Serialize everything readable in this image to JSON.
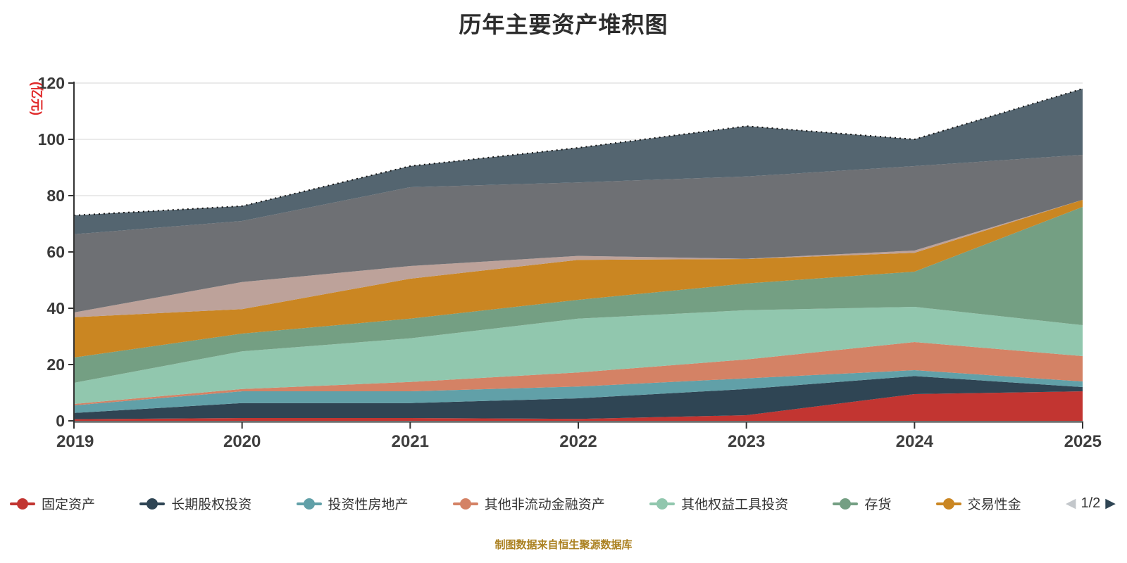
{
  "title": "历年主要资产堆积图",
  "footer": "制图数据来自恒生聚源数据库",
  "y_axis": {
    "name": "(亿元)",
    "name_color": "#e02b2b",
    "ticks": [
      0,
      20,
      40,
      60,
      80,
      100,
      120
    ]
  },
  "x_axis": {
    "labels": [
      "2019",
      "2020",
      "2021",
      "2022",
      "2023",
      "2024",
      "2025"
    ]
  },
  "legend": {
    "visible_items": [
      {
        "label": "固定资产",
        "color": "#c23531"
      },
      {
        "label": "长期股权投资",
        "color": "#2f4554"
      },
      {
        "label": "投资性房地产",
        "color": "#61a0a8"
      },
      {
        "label": "其他非流动金融资产",
        "color": "#d48265"
      },
      {
        "label": "其他权益工具投资",
        "color": "#91c7ae"
      },
      {
        "label": "存货",
        "color": "#749f83"
      },
      {
        "label": "交易性金",
        "color": "#ca8622"
      }
    ],
    "pagination": {
      "label": "1/2",
      "prev_glyph": "◀",
      "next_glyph": "▶",
      "prev_color": "#c3c7cb",
      "next_color": "#2f4554"
    }
  },
  "chart_data": {
    "type": "area",
    "stacked": true,
    "title": "历年主要资产堆积图",
    "categories": [
      "2019",
      "2020",
      "2021",
      "2022",
      "2023",
      "2024",
      "2025"
    ],
    "series": [
      {
        "name": "固定资产",
        "color": "#c23531",
        "legend_page": 1,
        "values": [
          0.6,
          1.0,
          1.0,
          0.7,
          2.0,
          9.5,
          10.5
        ]
      },
      {
        "name": "长期股权投资",
        "color": "#2f4554",
        "legend_page": 1,
        "values": [
          2.2,
          5.3,
          5.3,
          7.3,
          9.3,
          6.4,
          1.5
        ]
      },
      {
        "name": "投资性房地产",
        "color": "#61a0a8",
        "legend_page": 1,
        "values": [
          2.7,
          4.2,
          4.2,
          4.2,
          3.8,
          2.1,
          2.0
        ]
      },
      {
        "name": "其他非流动金融资产",
        "color": "#d48265",
        "legend_page": 1,
        "values": [
          0.5,
          0.8,
          3.3,
          5.0,
          6.7,
          10.0,
          9.0
        ]
      },
      {
        "name": "其他权益工具投资",
        "color": "#91c7ae",
        "legend_page": 1,
        "values": [
          7.5,
          13.4,
          15.5,
          19.1,
          17.5,
          12.5,
          11.0
        ]
      },
      {
        "name": "存货",
        "color": "#749f83",
        "legend_page": 1,
        "values": [
          9.0,
          6.3,
          7.0,
          6.7,
          9.5,
          12.5,
          42.0
        ]
      },
      {
        "name": "交易性金",
        "color": "#ca8622",
        "legend_page": 1,
        "values": [
          14.3,
          8.7,
          14.2,
          14.2,
          8.7,
          6.7,
          2.5
        ]
      },
      {
        "name": "",
        "color": "#bda29a",
        "legend_page": 2,
        "values": [
          1.7,
          9.6,
          4.5,
          1.4,
          0.1,
          0.8,
          0.0
        ]
      },
      {
        "name": "",
        "color": "#6e7074",
        "legend_page": 2,
        "values": [
          27.8,
          21.7,
          28.0,
          26.1,
          29.2,
          30.0,
          16.0
        ]
      },
      {
        "name": "",
        "color": "#546570",
        "legend_page": 2,
        "values": [
          6.7,
          5.3,
          7.5,
          12.3,
          17.9,
          9.5,
          23.5
        ]
      }
    ],
    "xlabel": "",
    "ylabel": "(亿元)",
    "ylim": [
      0,
      120
    ],
    "grid": true,
    "gridline_color": "#d6d6d6",
    "legend_position": "bottom",
    "top_edge_style": "dotted-black"
  }
}
